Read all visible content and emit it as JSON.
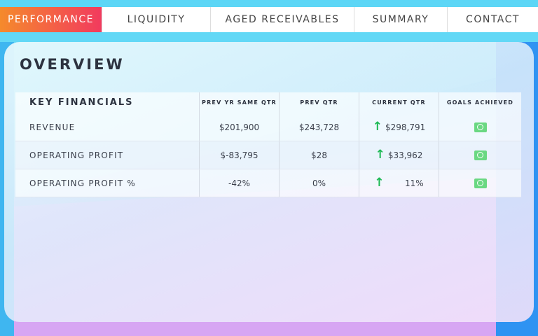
{
  "nav": {
    "tabs": [
      {
        "label": "PERFORMANCE",
        "active": true
      },
      {
        "label": "LIQUIDITY",
        "active": false
      },
      {
        "label": "AGED RECEIVABLES",
        "active": false
      },
      {
        "label": "SUMMARY",
        "active": false
      },
      {
        "label": "CONTACT",
        "active": false
      }
    ]
  },
  "overview": {
    "title": "OVERVIEW",
    "headers": {
      "key": "KEY FINANCIALS",
      "prev_yr": "PREV YR SAME QTR",
      "prev_qtr": "PREV QTR",
      "current_qtr": "CURRENT QTR",
      "goals": "GOALS ACHIEVED"
    },
    "rows": [
      {
        "label": "REVENUE",
        "prev_yr": "$201,900",
        "prev_qtr": "$243,728",
        "current_qtr": "$298,791",
        "trend_icon": "up-arrow-icon",
        "goal_icon": "goal-achieved-icon"
      },
      {
        "label": "OPERATING PROFIT",
        "prev_yr": "$-83,795",
        "prev_qtr": "$28",
        "current_qtr": "$33,962",
        "trend_icon": "up-arrow-icon",
        "goal_icon": "goal-achieved-icon"
      },
      {
        "label": "OPERATING PROFIT %",
        "prev_yr": "-42%",
        "prev_qtr": "0%",
        "current_qtr": "11%",
        "trend_icon": "up-arrow-icon",
        "goal_icon": "goal-achieved-icon"
      }
    ]
  },
  "colors": {
    "active_tab_start": "#f58a2c",
    "active_tab_end": "#f23a5e",
    "trend_up": "#1db954",
    "goal": "#6ad882"
  }
}
